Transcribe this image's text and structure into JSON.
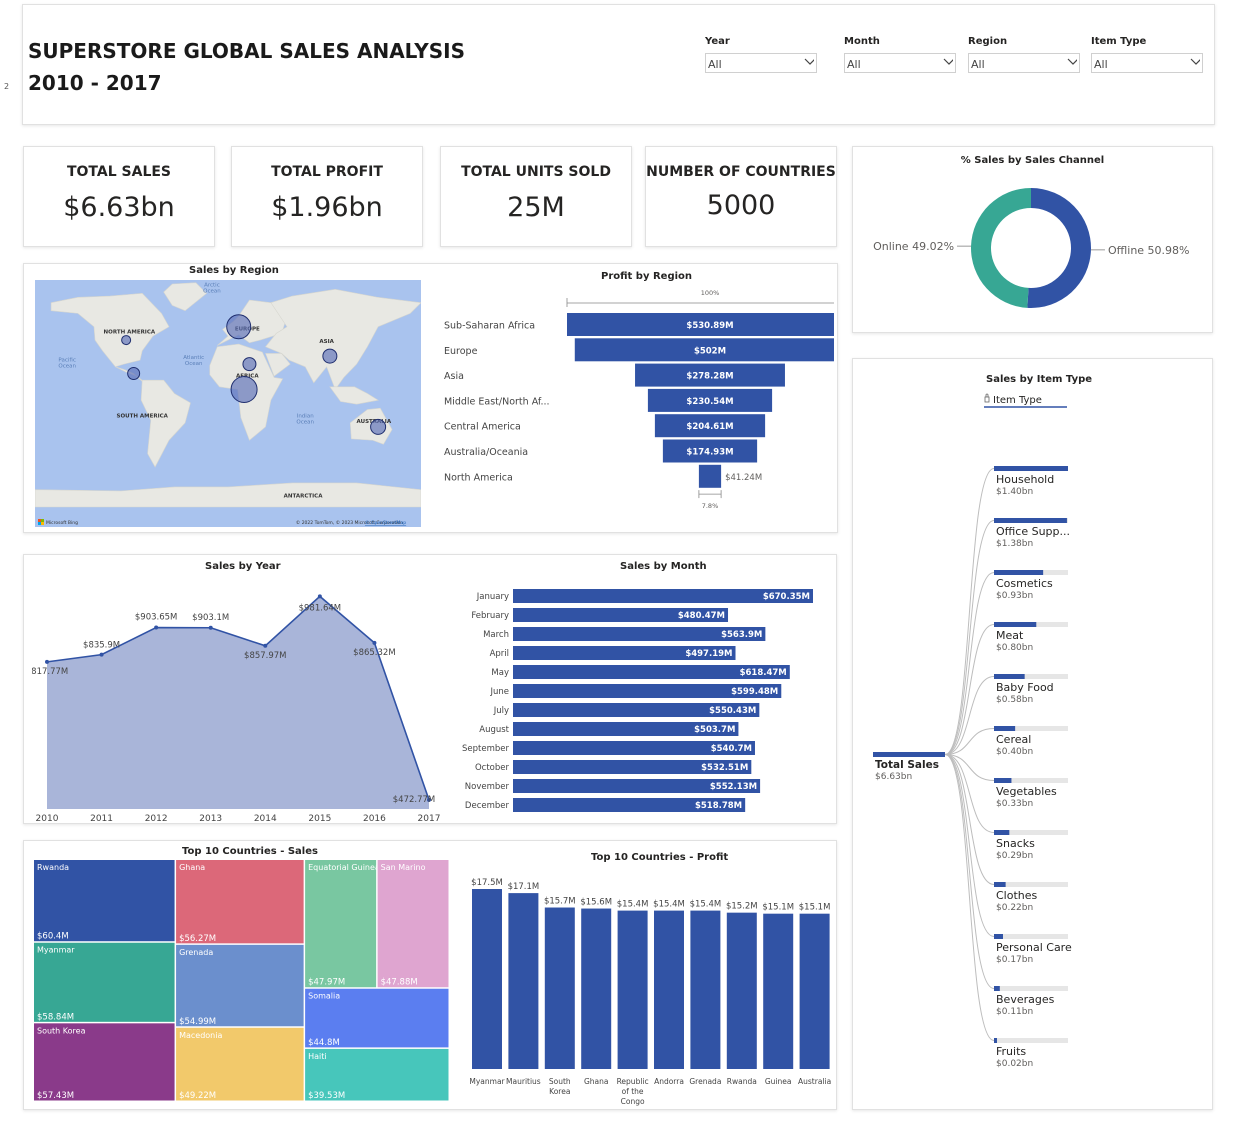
{
  "page_marker": "2",
  "header": {
    "title_line1": "SUPERSTORE GLOBAL SALES ANALYSIS",
    "title_line2": "2010 - 2017",
    "slicers": [
      {
        "label": "Year",
        "value": "All"
      },
      {
        "label": "Month",
        "value": "All"
      },
      {
        "label": "Region",
        "value": "All"
      },
      {
        "label": "Item Type",
        "value": "All"
      }
    ]
  },
  "kpis": [
    {
      "label": "TOTAL SALES",
      "value": "$6.63bn"
    },
    {
      "label": "TOTAL PROFIT",
      "value": "$1.96bn"
    },
    {
      "label": "TOTAL UNITS SOLD",
      "value": "25M"
    },
    {
      "label": "NUMBER OF COUNTRIES",
      "value": "5000"
    }
  ],
  "colors": {
    "primary": "#3153a5",
    "teal": "#37a794",
    "map_water": "#a9c3ee",
    "map_land": "#e8e8e3",
    "area_fill": "#a9b5d9",
    "grey_track": "#e6e6e6"
  },
  "map": {
    "attribution": "© 2022 TomTom, © 2023 Microsoft Corporation",
    "attribution_link": "© OpenStreetMap",
    "brand": "Microsoft Bing",
    "labels": [
      {
        "text": "Arctic Ocean",
        "role": "ocean"
      },
      {
        "text": "NORTH AMERICA",
        "role": "continent"
      },
      {
        "text": "EUROPE",
        "role": "continent"
      },
      {
        "text": "ASIA",
        "role": "continent"
      },
      {
        "text": "Pacific Ocean",
        "role": "ocean"
      },
      {
        "text": "Atlantic Ocean",
        "role": "ocean"
      },
      {
        "text": "AFRICA",
        "role": "continent"
      },
      {
        "text": "SOUTH AMERICA",
        "role": "continent"
      },
      {
        "text": "Indian Ocean",
        "role": "ocean"
      },
      {
        "text": "AUSTRALIA",
        "role": "continent"
      },
      {
        "text": "ANTARCTICA",
        "role": "continent"
      }
    ]
  },
  "chart_data": [
    {
      "id": "sales-by-region",
      "type": "map-bubble",
      "title": "Sales by Region",
      "points": [
        {
          "region": "North America",
          "lon": -95,
          "lat": 40
        },
        {
          "region": "Central America",
          "lon": -88,
          "lat": 15
        },
        {
          "region": "Europe",
          "lon": 10,
          "lat": 50
        },
        {
          "region": "Middle East/North Africa",
          "lon": 20,
          "lat": 22
        },
        {
          "region": "Sub-Saharan Africa",
          "lon": 15,
          "lat": 3
        },
        {
          "region": "Asia",
          "lon": 95,
          "lat": 28
        },
        {
          "region": "Australia/Oceania",
          "lon": 140,
          "lat": -25
        }
      ],
      "legend": "none"
    },
    {
      "id": "profit-by-region",
      "type": "funnel",
      "title": "Profit by Region",
      "top_label": "100%",
      "bottom_label": "7.8%",
      "categories": [
        "Sub-Saharan Africa",
        "Europe",
        "Asia",
        "Middle East/North Af...",
        "Central America",
        "Australia/Oceania",
        "North America"
      ],
      "values": [
        530.89,
        502,
        278.28,
        230.54,
        204.61,
        174.93,
        41.24
      ],
      "value_labels": [
        "$530.89M",
        "$502M",
        "$278.28M",
        "$230.54M",
        "$204.61M",
        "$174.93M",
        "$41.24M"
      ],
      "unit": "$M"
    },
    {
      "id": "pct-sales-by-channel",
      "type": "pie",
      "title": "% Sales by Sales Channel",
      "slices": [
        {
          "label": "Offline",
          "value": 50.98,
          "label_text": "Offline 50.98%",
          "color": "#3153a5"
        },
        {
          "label": "Online",
          "value": 49.02,
          "label_text": "Online 49.02%",
          "color": "#37a794"
        }
      ],
      "donut": true
    },
    {
      "id": "sales-by-year",
      "type": "area",
      "title": "Sales by Year",
      "x": [
        "2010",
        "2011",
        "2012",
        "2013",
        "2014",
        "2015",
        "2016",
        "2017"
      ],
      "values": [
        817.77,
        835.9,
        903.65,
        903.1,
        857.97,
        981.64,
        865.32,
        472.77
      ],
      "value_labels": [
        "$817.77M",
        "$835.9M",
        "$903.65M",
        "$903.1M",
        "$857.97M",
        "$981.64M",
        "$865.32M",
        "$472.77M"
      ],
      "ylim": [
        450,
        1000
      ],
      "unit": "$M"
    },
    {
      "id": "sales-by-month",
      "type": "bar",
      "orientation": "horizontal",
      "title": "Sales by Month",
      "categories": [
        "January",
        "February",
        "March",
        "April",
        "May",
        "June",
        "July",
        "August",
        "September",
        "October",
        "November",
        "December"
      ],
      "values": [
        670.35,
        480.47,
        563.9,
        497.19,
        618.47,
        599.48,
        550.43,
        503.7,
        540.7,
        532.51,
        552.13,
        518.78
      ],
      "value_labels": [
        "$670.35M",
        "$480.47M",
        "$563.9M",
        "$497.19M",
        "$618.47M",
        "$599.48M",
        "$550.43M",
        "$503.7M",
        "$540.7M",
        "$532.51M",
        "$552.13M",
        "$518.78M"
      ],
      "unit": "$M"
    },
    {
      "id": "top10-countries-sales",
      "type": "treemap",
      "title": "Top 10 Countries - Sales",
      "items": [
        {
          "name": "Rwanda",
          "value": 60.4,
          "label": "$60.4M",
          "color": "#3153a5"
        },
        {
          "name": "Myanmar",
          "value": 58.84,
          "label": "$58.84M",
          "color": "#37a794"
        },
        {
          "name": "South Korea",
          "value": 57.43,
          "label": "$57.43M",
          "color": "#8a3a8a"
        },
        {
          "name": "Ghana",
          "value": 56.27,
          "label": "$56.27M",
          "color": "#dc6879"
        },
        {
          "name": "Grenada",
          "value": 54.99,
          "label": "$54.99M",
          "color": "#6b8fcd"
        },
        {
          "name": "Macedonia",
          "value": 49.22,
          "label": "$49.22M",
          "color": "#f2c96b"
        },
        {
          "name": "Equatorial Guinea",
          "value": 47.97,
          "label": "$47.97M",
          "color": "#79c7a1"
        },
        {
          "name": "San Marino",
          "value": 47.88,
          "label": "$47.88M",
          "color": "#dfa5d0"
        },
        {
          "name": "Somalia",
          "value": 44.8,
          "label": "$44.8M",
          "color": "#5b7ef0"
        },
        {
          "name": "Haiti",
          "value": 39.53,
          "label": "$39.53M",
          "color": "#47c6bb"
        }
      ],
      "unit": "$M"
    },
    {
      "id": "top10-countries-profit",
      "type": "bar",
      "orientation": "vertical",
      "title": "Top 10 Countries - Profit",
      "categories": [
        "Myanmar",
        "Mauritius",
        "South Korea",
        "Ghana",
        "Republic of the Congo",
        "Andorra",
        "Grenada",
        "Rwanda",
        "Guinea",
        "Australia"
      ],
      "values": [
        17.5,
        17.1,
        15.7,
        15.6,
        15.4,
        15.4,
        15.4,
        15.2,
        15.1,
        15.1
      ],
      "value_labels": [
        "$17.5M",
        "$17.1M",
        "$15.7M",
        "$15.6M",
        "$15.4M",
        "$15.4M",
        "$15.4M",
        "$15.2M",
        "$15.1M",
        "$15.1M"
      ],
      "ylim": [
        0,
        17.5
      ],
      "unit": "$M"
    },
    {
      "id": "sales-by-item-type",
      "type": "decomposition-tree",
      "title": "Sales by Item Type",
      "level_label": "Item Type",
      "root": {
        "label": "Total Sales",
        "value": 6.63,
        "value_label": "$6.63bn"
      },
      "items": [
        {
          "name": "Household",
          "value": 1.4,
          "value_label": "$1.40bn"
        },
        {
          "name": "Office Supp...",
          "value": 1.38,
          "value_label": "$1.38bn"
        },
        {
          "name": "Cosmetics",
          "value": 0.93,
          "value_label": "$0.93bn"
        },
        {
          "name": "Meat",
          "value": 0.8,
          "value_label": "$0.80bn"
        },
        {
          "name": "Baby Food",
          "value": 0.58,
          "value_label": "$0.58bn"
        },
        {
          "name": "Cereal",
          "value": 0.4,
          "value_label": "$0.40bn"
        },
        {
          "name": "Vegetables",
          "value": 0.33,
          "value_label": "$0.33bn"
        },
        {
          "name": "Snacks",
          "value": 0.29,
          "value_label": "$0.29bn"
        },
        {
          "name": "Clothes",
          "value": 0.22,
          "value_label": "$0.22bn"
        },
        {
          "name": "Personal Care",
          "value": 0.17,
          "value_label": "$0.17bn"
        },
        {
          "name": "Beverages",
          "value": 0.11,
          "value_label": "$0.11bn"
        },
        {
          "name": "Fruits",
          "value": 0.02,
          "value_label": "$0.02bn"
        }
      ],
      "unit": "$bn"
    }
  ]
}
